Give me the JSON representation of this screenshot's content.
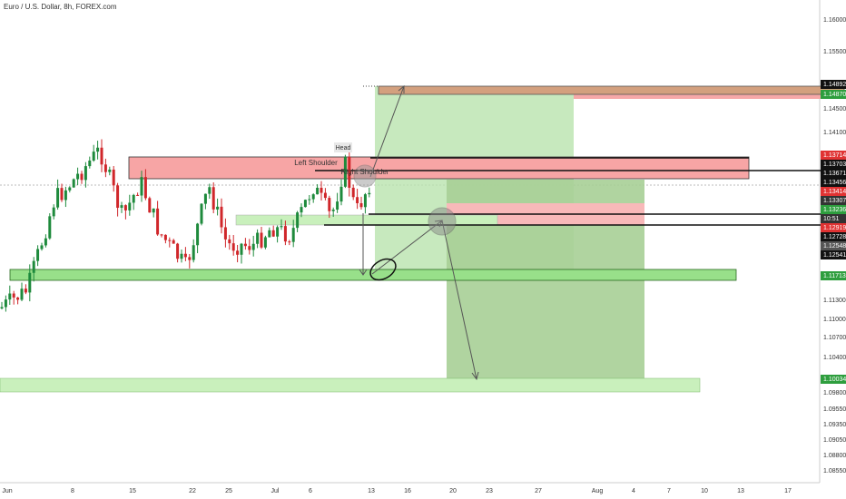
{
  "header": {
    "title": "Euro / U.S. Dollar, 8h, FOREX.com"
  },
  "price_axis": [
    "1.16000",
    "1.15500",
    "1.14892",
    "1.14870",
    "1.14500",
    "1.14100",
    "1.13714",
    "1.13703",
    "1.13671",
    "1.13456",
    "1.13414",
    "1.13307",
    "1.13236",
    "10:51",
    "1.12919",
    "1.12728",
    "1.12548",
    "1.12541",
    "1.11713",
    "1.11300",
    "1.11000",
    "1.10700",
    "1.10400",
    "1.10034",
    "1.09800",
    "1.09550",
    "1.09350",
    "1.09050",
    "1.08800",
    "1.08550"
  ],
  "date_axis": [
    "Jun",
    "8",
    "15",
    "22",
    "25",
    "Jul",
    "6",
    "13",
    "16",
    "20",
    "23",
    "27",
    "Aug",
    "4",
    "7",
    "10",
    "13",
    "17"
  ],
  "annotations": {
    "head": "Head",
    "left_shoulder": "Left Shoulder",
    "right_shoulder": "Right Shoulder"
  }
}
